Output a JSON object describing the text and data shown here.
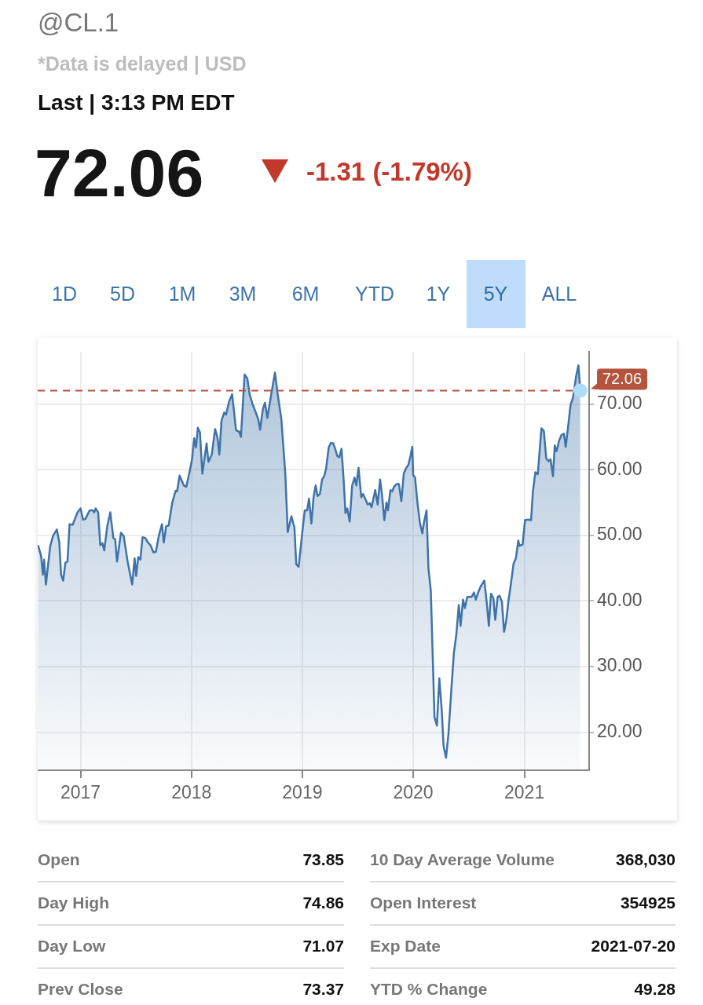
{
  "chart_data": {
    "type": "area",
    "title": "@CL.1",
    "subtitle": "*Data is delayed | USD",
    "annotations": [
      "Last | 3:13 PM EDT",
      "72.06",
      "-1.31 (-1.79%)",
      "1D",
      "5D",
      "1M",
      "3M",
      "6M",
      "YTD",
      "1Y",
      "5Y",
      "ALL",
      "Open",
      "73.85",
      "Day High",
      "74.86",
      "Day Low",
      "71.07",
      "Prev Close",
      "73.37",
      "10 Day Average Volume",
      "368,030",
      "Open Interest",
      "354925",
      "Exp Date",
      "2021-07-20",
      "YTD % Change",
      "49.28"
    ],
    "x": [
      "2016-08-14",
      "2016-08-24",
      "2016-08-30",
      "2016-09-03",
      "2016-09-09",
      "2016-09-23",
      "2016-10-03",
      "2016-10-15",
      "2016-10-23",
      "2016-10-29",
      "2016-11-05",
      "2016-11-12",
      "2016-11-19",
      "2016-11-26",
      "2016-12-06",
      "2016-12-22",
      "2017-01-01",
      "2017-01-09",
      "2017-01-17",
      "2017-01-31",
      "2017-02-10",
      "2017-02-15",
      "2017-02-20",
      "2017-02-28",
      "2017-03-07",
      "2017-03-14",
      "2017-03-20",
      "2017-03-30",
      "2017-04-09",
      "2017-04-19",
      "2017-04-25",
      "2017-05-01",
      "2017-05-14",
      "2017-05-23",
      "2017-06-05",
      "2017-06-20",
      "2017-06-28",
      "2017-07-03",
      "2017-07-10",
      "2017-07-17",
      "2017-07-24",
      "2017-08-02",
      "2017-08-11",
      "2017-08-19",
      "2017-08-29",
      "2017-09-06",
      "2017-09-16",
      "2017-09-26",
      "2017-10-02",
      "2017-10-10",
      "2017-10-18",
      "2017-10-30",
      "2017-11-10",
      "2017-11-15",
      "2017-11-23",
      "2017-12-07",
      "2017-12-15",
      "2017-12-27",
      "2018-01-03",
      "2018-01-10",
      "2018-01-16",
      "2018-01-22",
      "2018-01-29",
      "2018-02-06",
      "2018-02-14",
      "2018-02-20",
      "2018-02-26",
      "2018-03-09",
      "2018-03-20",
      "2018-03-28",
      "2018-04-03",
      "2018-04-10",
      "2018-04-19",
      "2018-04-25",
      "2018-05-05",
      "2018-05-15",
      "2018-05-28",
      "2018-06-07",
      "2018-06-13",
      "2018-06-25",
      "2018-07-04",
      "2018-07-12",
      "2018-07-22",
      "2018-08-01",
      "2018-08-09",
      "2018-08-15",
      "2018-08-24",
      "2018-08-31",
      "2018-09-08",
      "2018-09-20",
      "2018-10-03",
      "2018-10-12",
      "2018-10-24",
      "2018-11-06",
      "2018-11-14",
      "2018-11-26",
      "2018-12-06",
      "2018-12-12",
      "2018-12-20",
      "2019-01-01",
      "2019-01-09",
      "2019-01-17",
      "2019-01-23",
      "2019-01-31",
      "2019-02-07",
      "2019-02-14",
      "2019-02-20",
      "2019-02-28",
      "2019-03-07",
      "2019-03-14",
      "2019-03-20",
      "2019-03-29",
      "2019-04-05",
      "2019-04-13",
      "2019-04-19",
      "2019-04-26",
      "2019-05-03",
      "2019-05-10",
      "2019-05-17",
      "2019-05-23",
      "2019-05-29",
      "2019-06-06",
      "2019-06-14",
      "2019-06-22",
      "2019-06-28",
      "2019-07-05",
      "2019-07-14",
      "2019-07-20",
      "2019-07-27",
      "2019-08-04",
      "2019-08-11",
      "2019-08-17",
      "2019-08-29",
      "2019-09-06",
      "2019-09-14",
      "2019-09-20",
      "2019-09-28",
      "2019-10-05",
      "2019-10-10",
      "2019-10-18",
      "2019-10-24",
      "2019-10-30",
      "2019-11-07",
      "2019-11-15",
      "2019-11-23",
      "2019-12-01",
      "2019-12-09",
      "2019-12-16",
      "2019-12-23",
      "2019-12-29",
      "2020-01-01",
      "2020-01-07",
      "2020-01-15",
      "2020-01-23",
      "2020-01-31",
      "2020-02-06",
      "2020-02-14",
      "2020-02-20",
      "2020-02-28",
      "2020-03-11",
      "2020-03-19",
      "2020-03-27",
      "2020-04-04",
      "2020-04-10",
      "2020-04-18",
      "2020-04-26",
      "2020-05-06",
      "2020-05-14",
      "2020-05-22",
      "2020-05-30",
      "2020-06-05",
      "2020-06-13",
      "2020-06-19",
      "2020-06-27",
      "2020-07-11",
      "2020-07-19",
      "2020-07-25",
      "2020-08-02",
      "2020-08-10",
      "2020-08-22",
      "2020-08-30",
      "2020-09-06",
      "2020-09-13",
      "2020-09-21",
      "2020-09-27",
      "2020-10-05",
      "2020-10-11",
      "2020-10-19",
      "2020-10-26",
      "2020-11-02",
      "2020-11-10",
      "2020-11-18",
      "2020-11-26",
      "2020-12-04",
      "2020-12-12",
      "2020-12-16",
      "2020-12-26",
      "2021-01-03",
      "2021-01-13",
      "2021-01-23",
      "2021-01-29",
      "2021-02-06",
      "2021-02-14",
      "2021-02-26",
      "2021-03-06",
      "2021-03-14",
      "2021-03-22",
      "2021-03-28",
      "2021-04-05",
      "2021-04-11",
      "2021-04-17",
      "2021-04-25",
      "2021-05-03",
      "2021-05-11",
      "2021-05-17",
      "2021-05-25",
      "2021-06-02",
      "2021-06-10",
      "2021-06-20",
      "2021-06-28",
      "2021-07-04"
    ],
    "series": [
      {
        "color": "#3f73a8",
        "values": [
          48.5,
          46.9,
          44.0,
          46.3,
          42.5,
          48.3,
          50.0,
          50.9,
          48.9,
          44.0,
          43.1,
          45.8,
          46.0,
          51.7,
          51.6,
          53.5,
          54.1,
          52.4,
          52.5,
          53.8,
          53.8,
          53.5,
          54.1,
          53.5,
          48.5,
          48.8,
          47.7,
          51.4,
          53.5,
          49.6,
          49.4,
          46.0,
          50.4,
          49.9,
          46.0,
          42.5,
          46.5,
          43.8,
          46.7,
          46.3,
          49.7,
          49.6,
          48.9,
          48.5,
          47.4,
          47.5,
          50.0,
          51.7,
          48.9,
          51.4,
          51.5,
          55.0,
          56.8,
          56.7,
          59.1,
          57.6,
          57.4,
          59.9,
          61.6,
          64.8,
          63.4,
          66.4,
          65.7,
          59.4,
          62.1,
          64.0,
          61.2,
          62.3,
          66.2,
          64.8,
          62.3,
          67.5,
          68.7,
          68.4,
          70.4,
          71.5,
          66.0,
          65.8,
          65.0,
          74.5,
          73.9,
          71.4,
          69.9,
          68.7,
          67.7,
          66.1,
          69.2,
          70.2,
          67.9,
          71.3,
          74.8,
          71.5,
          67.7,
          59.4,
          50.5,
          52.9,
          51.2,
          45.6,
          45.2,
          50.5,
          53.8,
          53.8,
          55.6,
          51.8,
          55.8,
          57.6,
          56.0,
          56.3,
          58.5,
          59.0,
          60.1,
          63.4,
          64.1,
          64.0,
          63.2,
          62.1,
          61.9,
          63.2,
          58.5,
          53.4,
          54.1,
          52.1,
          57.6,
          58.8,
          57.6,
          60.3,
          55.8,
          56.3,
          55.6,
          54.7,
          54.9,
          54.3,
          56.9,
          54.7,
          58.5,
          56.3,
          52.3,
          55.0,
          53.8,
          56.9,
          56.7,
          57.4,
          57.8,
          57.8,
          55.2,
          59.4,
          60.3,
          60.7,
          62.1,
          63.5,
          59.2,
          58.8,
          55.0,
          51.9,
          50.3,
          52.1,
          53.8,
          45.1,
          41.5,
          22.3,
          21.0,
          28.2,
          23.3,
          17.9,
          16.1,
          19.7,
          26.8,
          32.1,
          34.9,
          39.4,
          36.2,
          40.2,
          38.9,
          40.6,
          40.6,
          41.3,
          40.2,
          41.3,
          42.2,
          43.1,
          39.8,
          36.2,
          41.1,
          40.4,
          37.1,
          40.6,
          40.8,
          39.9,
          35.3,
          36.9,
          40.2,
          42.7,
          45.6,
          46.5,
          49.2,
          48.4,
          48.6,
          52.3,
          52.4,
          52.3,
          56.7,
          59.6,
          59.3,
          66.3,
          65.9,
          61.7,
          61.3,
          61.6,
          59.0,
          63.7,
          62.8,
          64.4,
          65.3,
          65.5,
          63.5,
          66.6,
          69.9,
          71.0,
          74.2,
          75.9,
          72.06
        ]
      }
    ],
    "xlim": [
      "2016-08-13",
      "2021-08-02"
    ],
    "xticks": [
      {
        "value": "2017-01-01",
        "label": "2017"
      },
      {
        "value": "2018-01-01",
        "label": "2018"
      },
      {
        "value": "2019-01-01",
        "label": "2019"
      },
      {
        "value": "2020-01-01",
        "label": "2020"
      },
      {
        "value": "2021-01-01",
        "label": "2021"
      }
    ],
    "ylim": [
      14.2,
      78
    ],
    "yticks": [
      {
        "value": 20,
        "label": "20.00"
      },
      {
        "value": 30,
        "label": "30.00"
      },
      {
        "value": 40,
        "label": "40.00"
      },
      {
        "value": 50,
        "label": "50.00"
      },
      {
        "value": 60,
        "label": "60.00"
      },
      {
        "value": 70,
        "label": "70.00"
      }
    ],
    "ref_lines": [
      {
        "axis": "y",
        "value": 72.06,
        "label": "72.06",
        "color": "#b5533c",
        "line_style": "dashed"
      }
    ],
    "grid": true
  }
}
